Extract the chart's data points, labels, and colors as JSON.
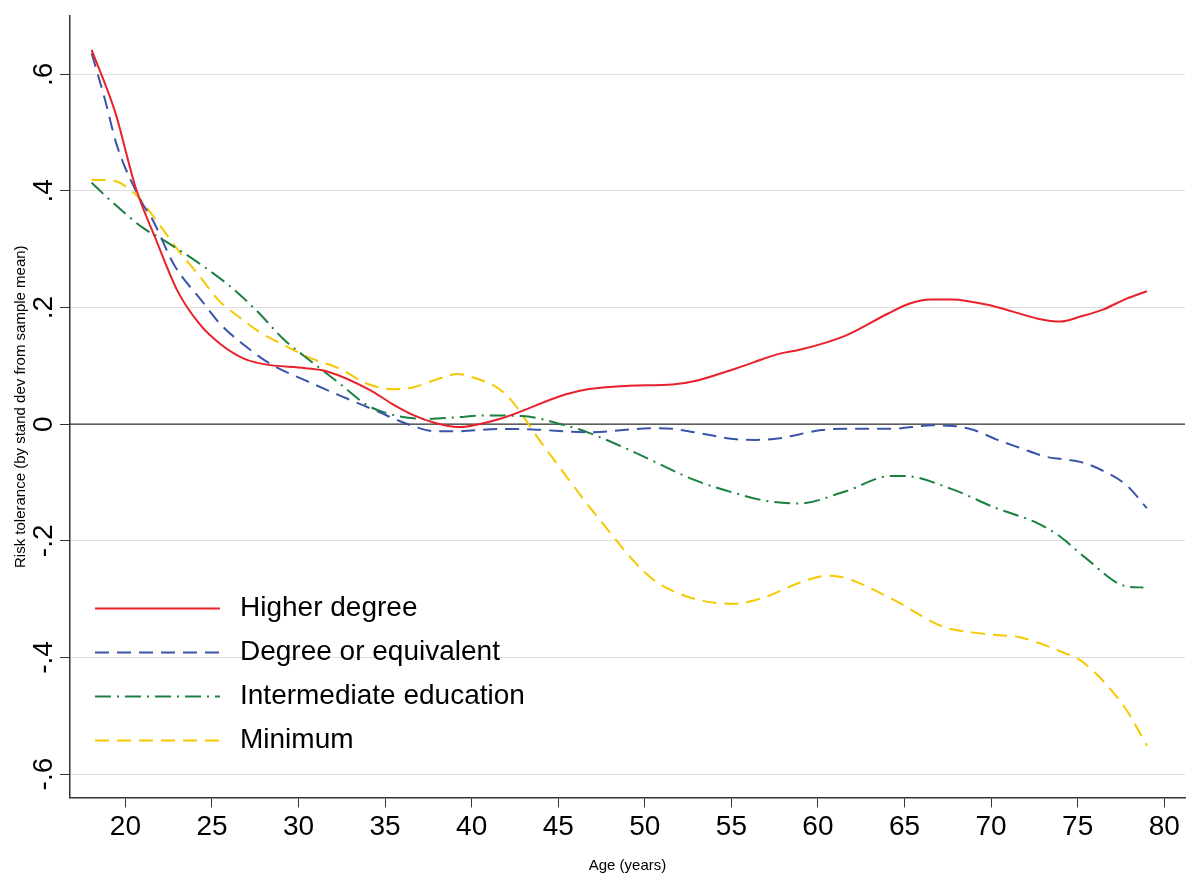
{
  "chart_data": {
    "type": "line",
    "xlabel": "Age (years)",
    "ylabel": "Risk tolerance (by stand dev from sample mean)",
    "xlim": [
      16.8,
      81.2
    ],
    "xticks": [
      20,
      25,
      30,
      35,
      40,
      45,
      50,
      55,
      60,
      65,
      70,
      75,
      80
    ],
    "ylim": [
      -0.64,
      0.7
    ],
    "yticks": [
      {
        "value": -0.6,
        "label": "-.6"
      },
      {
        "value": -0.4,
        "label": "-.4"
      },
      {
        "value": -0.2,
        "label": "-.2"
      },
      0,
      {
        "value": 0.2,
        "label": ".2"
      },
      {
        "value": 0.4,
        "label": ".4"
      },
      {
        "value": 0.6,
        "label": ".6"
      }
    ],
    "grid": "y",
    "legend": "bottom left",
    "marker": "none",
    "ref_lines": [
      {
        "axis": "y",
        "value": 0,
        "color": "#333333"
      }
    ],
    "series": [
      {
        "name": "Higher degree",
        "color": "#e8212a",
        "line_style": "solid",
        "x": [
          18.05,
          19.4,
          20.6,
          21.8,
          23,
          24.3,
          25.5,
          26.8,
          28,
          30.4,
          31.7,
          34.1,
          35.4,
          36.6,
          37.9,
          39.2,
          41.6,
          45.4,
          46.7,
          49.1,
          51.6,
          52.9,
          55.3,
          57.8,
          59,
          61.6,
          64,
          65.3,
          66.5,
          67.7,
          70.2,
          72.7,
          74,
          75.2,
          76.5,
          77.8,
          79
        ],
        "values": [
          0.642,
          0.536,
          0.405,
          0.314,
          0.229,
          0.171,
          0.137,
          0.113,
          0.103,
          0.096,
          0.09,
          0.059,
          0.035,
          0.016,
          0.002,
          -0.005,
          0.009,
          0.051,
          0.06,
          0.066,
          0.068,
          0.074,
          0.096,
          0.121,
          0.128,
          0.152,
          0.189,
          0.207,
          0.214,
          0.214,
          0.202,
          0.181,
          0.176,
          0.185,
          0.197,
          0.215,
          0.228
        ]
      },
      {
        "name": "Degree or equivalent",
        "color": "#3a55a8",
        "line_style": "dashed",
        "x": [
          18.05,
          18.8,
          19.5,
          20.9,
          21.6,
          22.8,
          24.4,
          25.5,
          26.8,
          28.4,
          30.4,
          32.4,
          34.4,
          36.4,
          37.9,
          39.2,
          41.6,
          43.5,
          46.7,
          50.5,
          51.6,
          52.9,
          55.3,
          56.4,
          57.8,
          60.2,
          61.7,
          64.2,
          66.6,
          67.8,
          69,
          70.3,
          71.7,
          73.2,
          74.1,
          75.2,
          76.4,
          77.8,
          79
        ],
        "values": [
          0.636,
          0.559,
          0.479,
          0.383,
          0.349,
          0.274,
          0.212,
          0.171,
          0.137,
          0.103,
          0.075,
          0.049,
          0.024,
          -0.001,
          -0.012,
          -0.012,
          -0.008,
          -0.009,
          -0.014,
          -0.007,
          -0.008,
          -0.014,
          -0.026,
          -0.027,
          -0.024,
          -0.01,
          -0.008,
          -0.008,
          -0.002,
          -0.003,
          -0.01,
          -0.026,
          -0.041,
          -0.056,
          -0.06,
          -0.065,
          -0.079,
          -0.104,
          -0.144
        ]
      },
      {
        "name": "Intermediate education",
        "color": "#1b8040",
        "line_style": "dashdot",
        "x": [
          18.05,
          19.2,
          21,
          22.3,
          24.2,
          25.9,
          27.5,
          29.2,
          30.8,
          32.4,
          34,
          35.6,
          37.4,
          39.2,
          40.6,
          42.9,
          45.4,
          46.7,
          49.1,
          52.9,
          55.3,
          56.9,
          58.9,
          61.6,
          64.2,
          65,
          67.7,
          70.3,
          72.7,
          74,
          75.4,
          77.8,
          78.8
        ],
        "values": [
          0.414,
          0.382,
          0.337,
          0.314,
          0.277,
          0.24,
          0.197,
          0.144,
          0.106,
          0.069,
          0.032,
          0.015,
          0.009,
          0.012,
          0.015,
          0.014,
          -0.002,
          -0.014,
          -0.044,
          -0.096,
          -0.119,
          -0.131,
          -0.136,
          -0.115,
          -0.089,
          -0.089,
          -0.111,
          -0.144,
          -0.17,
          -0.193,
          -0.228,
          -0.278,
          -0.28
        ]
      },
      {
        "name": "Minimum",
        "color": "#f5c800",
        "line_style": "dashed",
        "x": [
          18.05,
          19.2,
          20.6,
          21.6,
          23,
          24.2,
          25.4,
          26.6,
          27.8,
          29.2,
          30.8,
          32.4,
          34,
          35.5,
          36.6,
          38,
          39.2,
          40,
          41.9,
          44.2,
          47.4,
          50.3,
          52.7,
          55.2,
          56.8,
          59.2,
          60.5,
          61.6,
          64.1,
          67.3,
          68.9,
          70.5,
          71.6,
          74.2,
          75.3,
          77.7,
          79
        ],
        "values": [
          0.419,
          0.418,
          0.394,
          0.357,
          0.3,
          0.257,
          0.212,
          0.183,
          0.157,
          0.135,
          0.112,
          0.095,
          0.069,
          0.06,
          0.063,
          0.077,
          0.086,
          0.081,
          0.053,
          -0.039,
          -0.164,
          -0.262,
          -0.298,
          -0.308,
          -0.298,
          -0.269,
          -0.26,
          -0.264,
          -0.297,
          -0.348,
          -0.357,
          -0.362,
          -0.365,
          -0.392,
          -0.408,
          -0.485,
          -0.551
        ]
      }
    ]
  }
}
